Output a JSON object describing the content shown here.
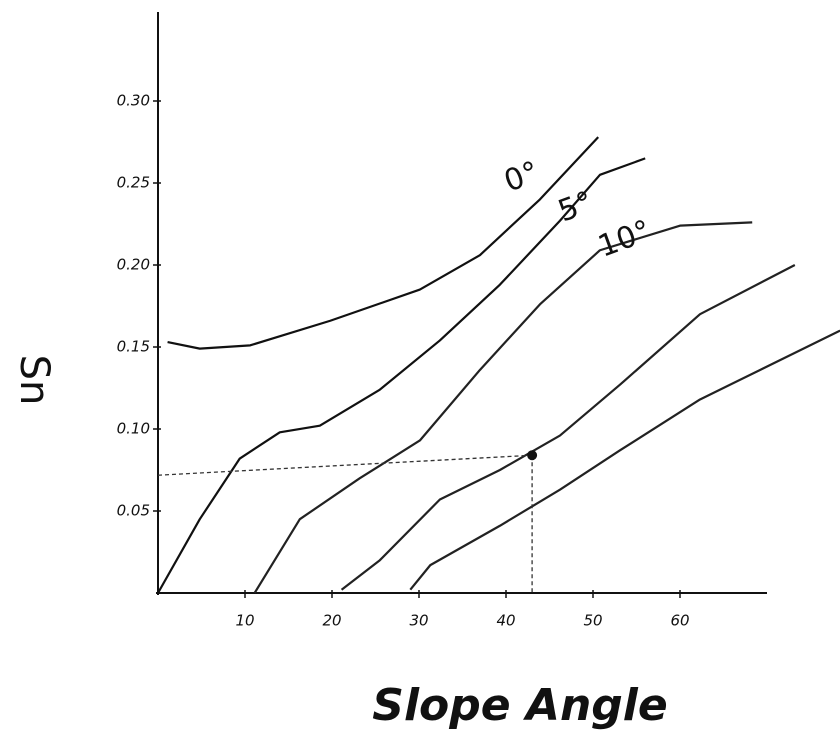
{
  "chart_data": {
    "type": "line",
    "x_label": "Slope Angle",
    "y_label": "Sn",
    "xlim": [
      0,
      70
    ],
    "ylim": [
      0,
      0.35
    ],
    "xticks": [
      10,
      20,
      30,
      40,
      50,
      60
    ],
    "yticks": [
      0.05,
      {
        "value": 0.1,
        "label": "0.10"
      },
      0.15,
      {
        "value": 0.2,
        "label": "0.20"
      },
      0.25,
      {
        "value": 0.3,
        "label": "0.30"
      }
    ],
    "series": [
      {
        "name": "0°",
        "color": "#111111",
        "x": [
          1.1,
          4.8,
          10.6,
          19.8,
          30.1,
          37,
          43.9,
          50.6
        ],
        "values": [
          0.153,
          0.149,
          0.151,
          0.166,
          0.185,
          0.206,
          0.24,
          0.278
        ]
      },
      {
        "name": "5°",
        "color": "#111111",
        "x": [
          0,
          4.8,
          9.4,
          14,
          18.6,
          25.5,
          32.4,
          39.3,
          46.2,
          50.8,
          56
        ],
        "values": [
          0,
          0.045,
          0.082,
          0.098,
          0.102,
          0.124,
          0.154,
          0.188,
          0.227,
          0.255,
          0.265
        ]
      },
      {
        "name": "10°",
        "color": "#222222",
        "x": [
          11.1,
          16.3,
          23.2,
          30.1,
          37,
          43.9,
          50.8,
          60,
          68.3
        ],
        "values": [
          0,
          0.045,
          0.07,
          0.093,
          0.136,
          0.176,
          0.209,
          0.224,
          0.226
        ]
      },
      {
        "color": "#222222",
        "x": [
          21.1,
          25.5,
          32.4,
          39.3,
          46.2,
          53.1,
          62.3,
          73.2
        ],
        "values": [
          0.002,
          0.02,
          0.057,
          0.075,
          0.096,
          0.127,
          0.17,
          0.2
        ]
      },
      {
        "color": "#222222",
        "x": [
          29,
          31.3,
          39.3,
          46.2,
          53.1,
          62.3,
          69.2,
          78.4
        ],
        "values": [
          0.002,
          0.017,
          0.041,
          0.063,
          0.087,
          0.118,
          0.136,
          0.16
        ]
      }
    ],
    "highlight": {
      "x": 43,
      "y": 0.084
    }
  }
}
